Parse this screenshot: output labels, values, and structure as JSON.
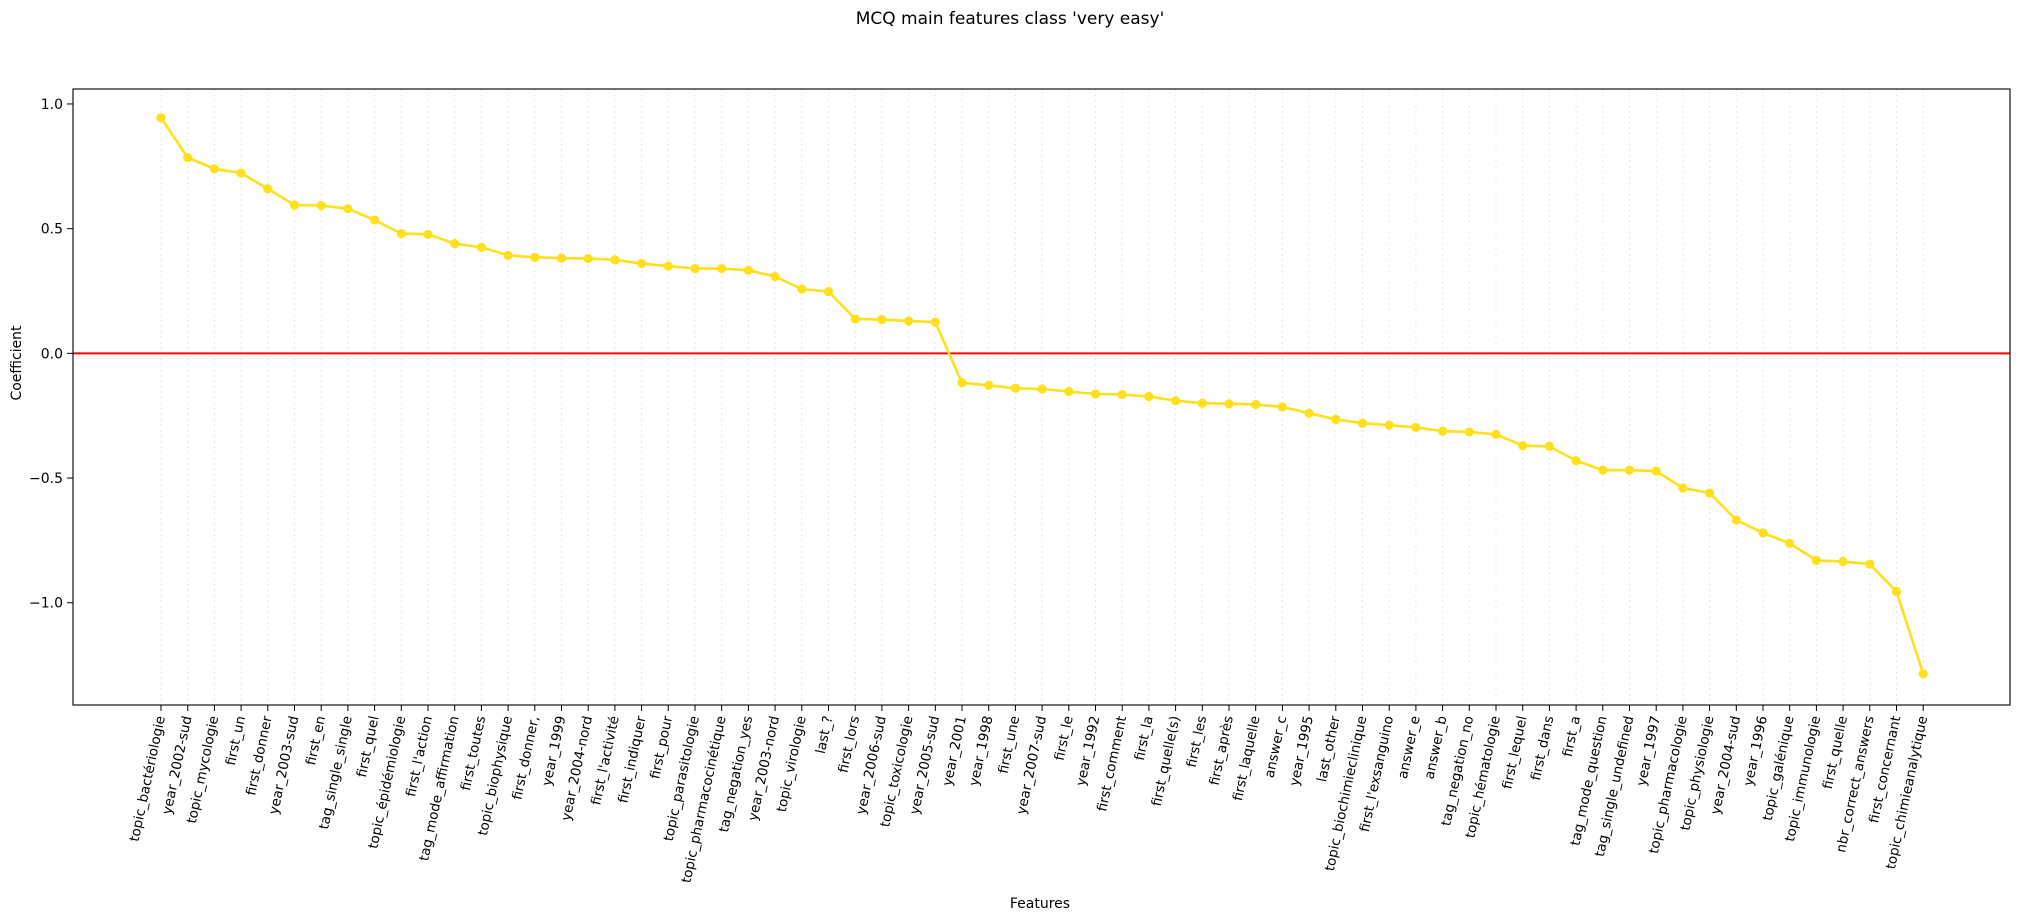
{
  "chart_data": {
    "type": "line",
    "title": "MCQ main features class 'very easy'",
    "xlabel": "Features",
    "ylabel": "Coefficient",
    "ylim": [
      -1.41,
      1.06
    ],
    "yticks": [
      -1.0,
      -0.5,
      0.0,
      0.5,
      1.0
    ],
    "ytick_labels": [
      "−1.0",
      "−0.5",
      "0.0",
      "0.5",
      "1.0"
    ],
    "grid": "vertical dotted",
    "reference_line": {
      "y": 0,
      "color": "#ff0000"
    },
    "series_color": "#ffe01b",
    "categories": [
      "topic_bactériologie",
      "year_2002-sud",
      "topic_mycologie",
      "first_un",
      "first_donner",
      "year_2003-sud",
      "first_en",
      "tag_single_single",
      "first_quel",
      "topic_épidémiologie",
      "first_l'action",
      "tag_mode_affirmation",
      "first_toutes",
      "topic_biophysique",
      "first_donner,",
      "year_1999",
      "year_2004-nord",
      "first_l'activité",
      "first_indiquer",
      "first_pour",
      "topic_parasitologie",
      "topic_pharmacocinétique",
      "tag_negation_yes",
      "year_2003-nord",
      "topic_virologie",
      "last_?",
      "first_lors",
      "year_2006-sud",
      "topic_toxicologie",
      "year_2005-sud",
      "year_2001",
      "year_1998",
      "first_une",
      "year_2007-sud",
      "first_le",
      "year_1992",
      "first_comment",
      "first_la",
      "first_quelle(s)",
      "first_les",
      "first_après",
      "first_laquelle",
      "answer_c",
      "year_1995",
      "last_other",
      "topic_biochimieclinique",
      "first_l'exsanguino",
      "answer_e",
      "answer_b",
      "tag_negation_no",
      "topic_hématologie",
      "first_lequel",
      "first_dans",
      "first_a",
      "tag_mode_question",
      "tag_single_undefined",
      "year_1997",
      "topic_pharmacologie",
      "topic_physiologie",
      "year_2004-sud",
      "year_1996",
      "topic_galénique",
      "topic_immunologie",
      "first_quelle",
      "nbr_correct_answers",
      "first_concernant",
      "topic_chimieanalytique"
    ],
    "values": [
      0.945,
      0.785,
      0.74,
      0.723,
      0.66,
      0.595,
      0.593,
      0.58,
      0.535,
      0.48,
      0.477,
      0.44,
      0.425,
      0.393,
      0.385,
      0.382,
      0.38,
      0.375,
      0.36,
      0.35,
      0.34,
      0.34,
      0.333,
      0.308,
      0.258,
      0.248,
      0.138,
      0.135,
      0.13,
      0.125,
      -0.118,
      -0.128,
      -0.14,
      -0.143,
      -0.153,
      -0.163,
      -0.165,
      -0.173,
      -0.19,
      -0.2,
      -0.202,
      -0.205,
      -0.215,
      -0.24,
      -0.265,
      -0.28,
      -0.288,
      -0.297,
      -0.312,
      -0.315,
      -0.325,
      -0.37,
      -0.373,
      -0.43,
      -0.468,
      -0.468,
      -0.472,
      -0.54,
      -0.56,
      -0.668,
      -0.72,
      -0.762,
      -0.83,
      -0.835,
      -0.845,
      -0.955,
      -1.285
    ]
  }
}
